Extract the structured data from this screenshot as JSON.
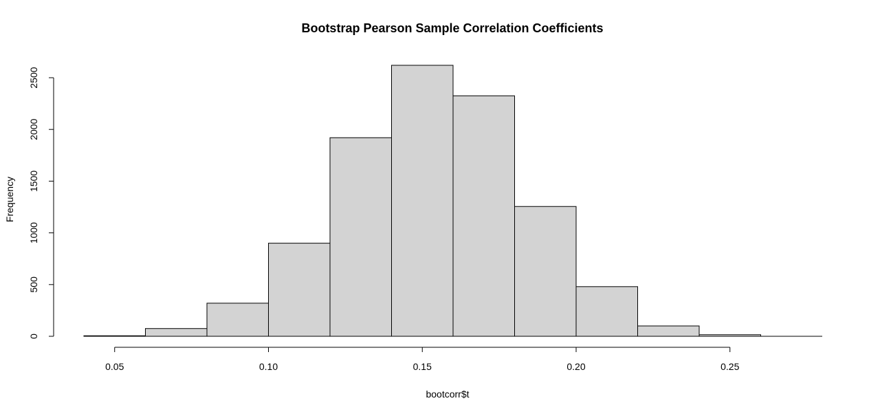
{
  "chart_data": {
    "type": "bar",
    "title": "Bootstrap Pearson Sample Correlation Coefficients",
    "xlabel": "bootcorr$t",
    "ylabel": "Frequency",
    "bins": [
      {
        "start": 0.04,
        "end": 0.06,
        "count": 5
      },
      {
        "start": 0.06,
        "end": 0.08,
        "count": 75
      },
      {
        "start": 0.08,
        "end": 0.1,
        "count": 320
      },
      {
        "start": 0.1,
        "end": 0.12,
        "count": 900
      },
      {
        "start": 0.12,
        "end": 0.14,
        "count": 1920
      },
      {
        "start": 0.14,
        "end": 0.16,
        "count": 2620
      },
      {
        "start": 0.16,
        "end": 0.18,
        "count": 2325
      },
      {
        "start": 0.18,
        "end": 0.2,
        "count": 1255
      },
      {
        "start": 0.2,
        "end": 0.22,
        "count": 480
      },
      {
        "start": 0.22,
        "end": 0.24,
        "count": 100
      },
      {
        "start": 0.24,
        "end": 0.26,
        "count": 15
      }
    ],
    "xlim": [
      0.04,
      0.28
    ],
    "ylim": [
      0,
      2500
    ],
    "x_ticks": [
      0.05,
      0.1,
      0.15,
      0.2,
      0.25
    ],
    "x_tick_labels": [
      "0.05",
      "0.10",
      "0.15",
      "0.20",
      "0.25"
    ],
    "y_ticks": [
      0,
      500,
      1000,
      1500,
      2000,
      2500
    ],
    "y_tick_labels": [
      "0",
      "500",
      "1000",
      "1500",
      "2000",
      "2500"
    ],
    "grid": false,
    "bar_color": "#d3d3d3",
    "edge_color": "#000000"
  }
}
